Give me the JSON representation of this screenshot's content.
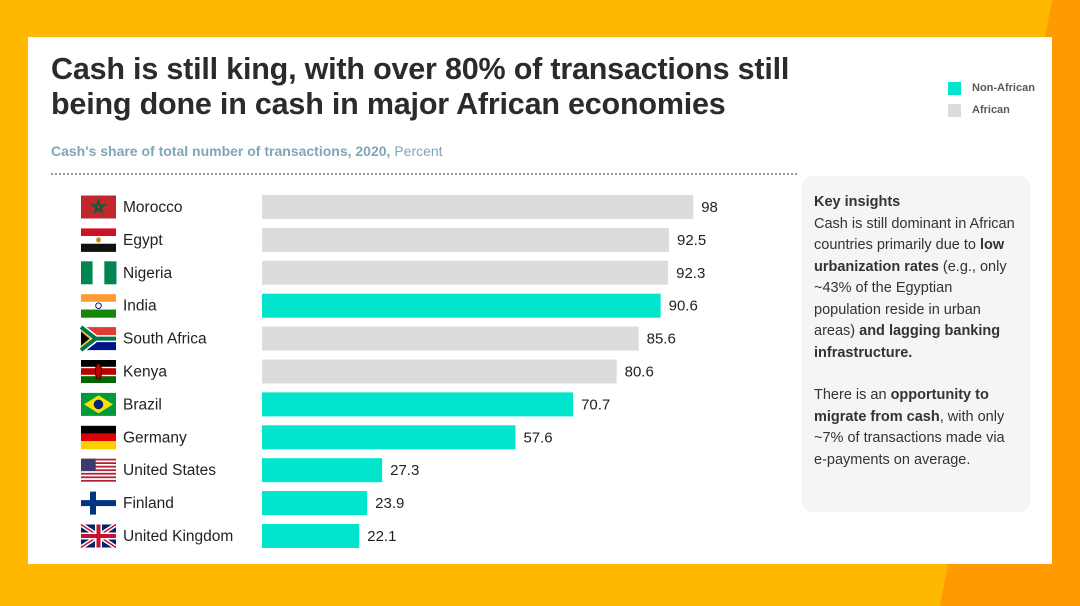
{
  "title": "Cash is still king, with over 80% of transactions still being done in cash in major African economies",
  "subtitle": {
    "bold": "Cash's share of total number of transactions, 2020,",
    "light": "Percent"
  },
  "legend": [
    {
      "label": "Non-African",
      "color": "#00E5CC"
    },
    {
      "label": "African",
      "color": "#DCDCDC"
    }
  ],
  "colors": {
    "non_african": "#00E5CC",
    "african": "#DCDCDC"
  },
  "insights": {
    "heading": "Key insights",
    "p1": {
      "t1": "Cash is still dominant in African countries primarily due to ",
      "b1": "low urbanization rates",
      "t2": " (e.g., only ~43% of the Egyptian population reside in urban areas) ",
      "b2": "and lagging banking infrastructure."
    },
    "p2": {
      "t1": "There is an ",
      "b1": "opportunity to migrate from cash",
      "t2": ", with only ~7% of transactions made via e-payments on average."
    }
  },
  "chart_data": {
    "type": "bar",
    "orientation": "horizontal",
    "title": "Cash's share of total number of transactions, 2020, Percent",
    "categories": [
      "Morocco",
      "Egypt",
      "Nigeria",
      "India",
      "South Africa",
      "Kenya",
      "Brazil",
      "Germany",
      "United States",
      "Finland",
      "United Kingdom"
    ],
    "values": [
      98,
      92.5,
      92.3,
      90.6,
      85.6,
      80.6,
      70.7,
      57.6,
      27.3,
      23.9,
      22.1
    ],
    "labels": [
      "98",
      "92.5",
      "92.3",
      "90.6",
      "85.6",
      "80.6",
      "70.7",
      "57.6",
      "27.3",
      "23.9",
      "22.1"
    ],
    "group": [
      "African",
      "African",
      "African",
      "Non-African",
      "African",
      "African",
      "Non-African",
      "Non-African",
      "Non-African",
      "Non-African",
      "Non-African"
    ],
    "flags": [
      "morocco-flag-icon",
      "egypt-flag-icon",
      "nigeria-flag-icon",
      "india-flag-icon",
      "south-africa-flag-icon",
      "kenya-flag-icon",
      "brazil-flag-icon",
      "germany-flag-icon",
      "us-flag-icon",
      "finland-flag-icon",
      "uk-flag-icon"
    ],
    "xlim": [
      0,
      100
    ],
    "grid": false,
    "legend_position": "top-right"
  }
}
